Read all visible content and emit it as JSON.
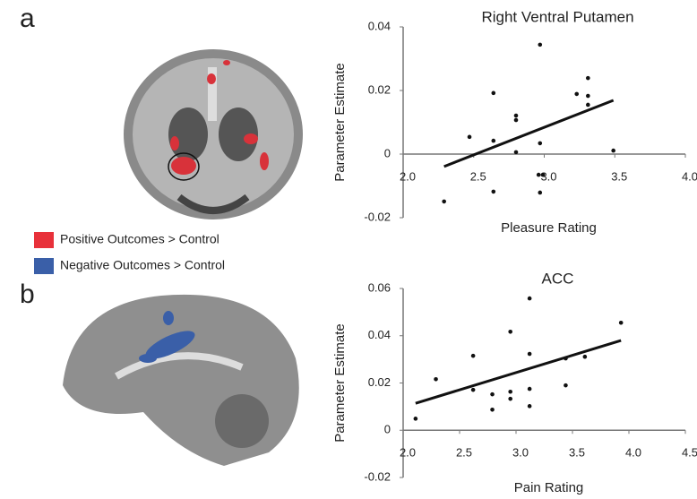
{
  "figure": {
    "panels": [
      "a",
      "b"
    ],
    "legend": [
      {
        "label": "Positive Outcomes > Control",
        "color": "#e8313a"
      },
      {
        "label": "Negative Outcomes > Control",
        "color": "#3a5fa8"
      }
    ]
  },
  "chart_data": [
    {
      "type": "scatter",
      "title": "Right Ventral Putamen",
      "x_label": "Pleasure Rating",
      "y_label": "Parameter Estimate",
      "color": "#111",
      "x": [
        2.29,
        2.47,
        2.64,
        2.64,
        2.64,
        2.8,
        2.8,
        2.8,
        2.97,
        2.97,
        2.96,
        2.99,
        2.97,
        3.23,
        3.31,
        3.31,
        3.31,
        3.49
      ],
      "values": [
        -0.0149,
        0.0054,
        0.0192,
        0.0042,
        -0.0118,
        0.0121,
        0.0107,
        0.0006,
        0.0344,
        0.0034,
        -0.0065,
        -0.0065,
        -0.0121,
        0.0189,
        0.0183,
        0.0239,
        0.0155,
        0.0011
      ],
      "fit": {
        "x": [
          2.29,
          3.49
        ],
        "y": [
          -0.0039,
          0.0169
        ]
      },
      "xlim": [
        2,
        4
      ],
      "ylim": [
        -0.02,
        0.04
      ],
      "xticks": [
        {
          "value": 2,
          "label": "2.0"
        },
        2.5,
        {
          "value": 3,
          "label": "3.0"
        },
        3.5,
        {
          "value": 4,
          "label": "4.0"
        }
      ],
      "yticks": [
        -0.02,
        0,
        0.02,
        0.04
      ]
    },
    {
      "type": "scatter",
      "title": "ACC",
      "x_label": "Pain Rating",
      "y_label": "Parameter Estimate",
      "color": "#111",
      "x": [
        2.11,
        2.29,
        2.62,
        2.62,
        2.79,
        2.79,
        2.95,
        2.95,
        2.95,
        3.12,
        3.12,
        3.12,
        3.12,
        3.44,
        3.44,
        3.61,
        3.93
      ],
      "values": [
        0.0049,
        0.0216,
        0.0315,
        0.0171,
        0.0152,
        0.0087,
        0.0417,
        0.0163,
        0.0133,
        0.0323,
        0.0175,
        0.0102,
        0.0558,
        0.0304,
        0.019,
        0.0311,
        0.0455
      ],
      "fit": {
        "x": [
          2.11,
          3.93
        ],
        "y": [
          0.0114,
          0.038
        ]
      },
      "xlim": [
        2,
        4.5
      ],
      "ylim": [
        -0.02,
        0.06
      ],
      "xticks": [
        {
          "value": 2,
          "label": "2.0"
        },
        2.5,
        {
          "value": 3,
          "label": "3.0"
        },
        3.5,
        {
          "value": 4,
          "label": "4.0"
        },
        4.5
      ],
      "yticks": [
        -0.02,
        0,
        0.02,
        0.04,
        0.06
      ]
    }
  ]
}
